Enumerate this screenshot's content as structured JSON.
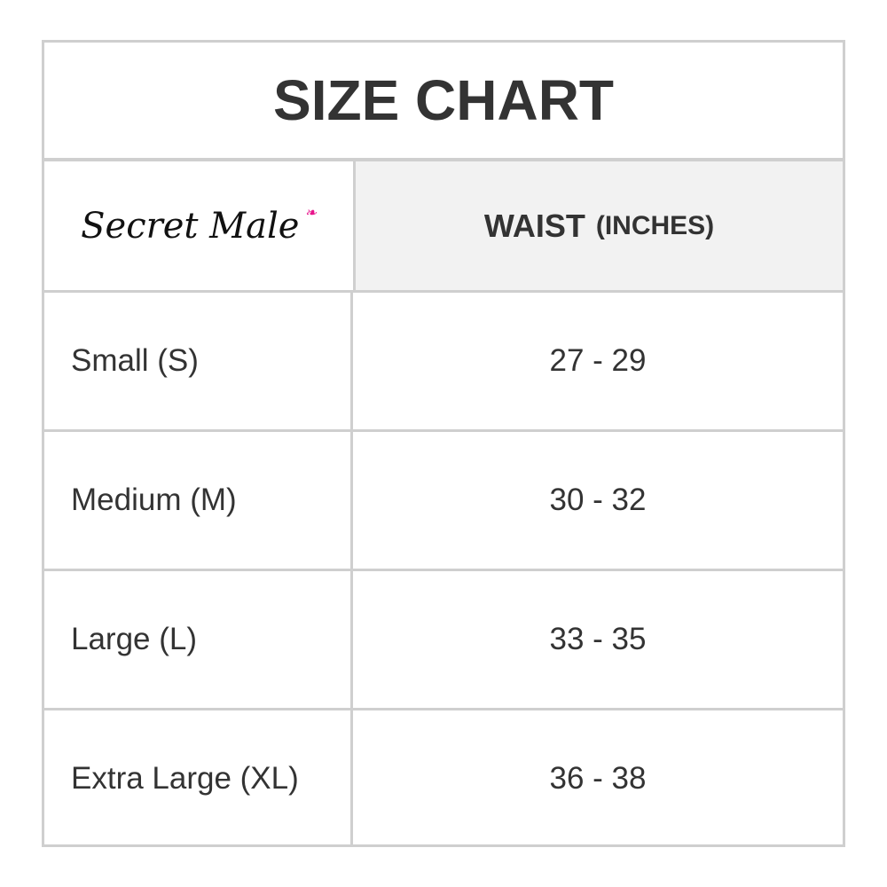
{
  "title": "SIZE CHART",
  "brand": {
    "logo_text": "Secret Male",
    "bow_color": "#e8158c"
  },
  "header": {
    "column": "WAIST",
    "unit": "(INCHES)"
  },
  "rows": [
    {
      "size": "Small (S)",
      "waist": "27 - 29"
    },
    {
      "size": "Medium (M)",
      "waist": "30 - 32"
    },
    {
      "size": "Large (L)",
      "waist": "33 - 35"
    },
    {
      "size": "Extra Large (XL)",
      "waist": "36 - 38"
    }
  ]
}
